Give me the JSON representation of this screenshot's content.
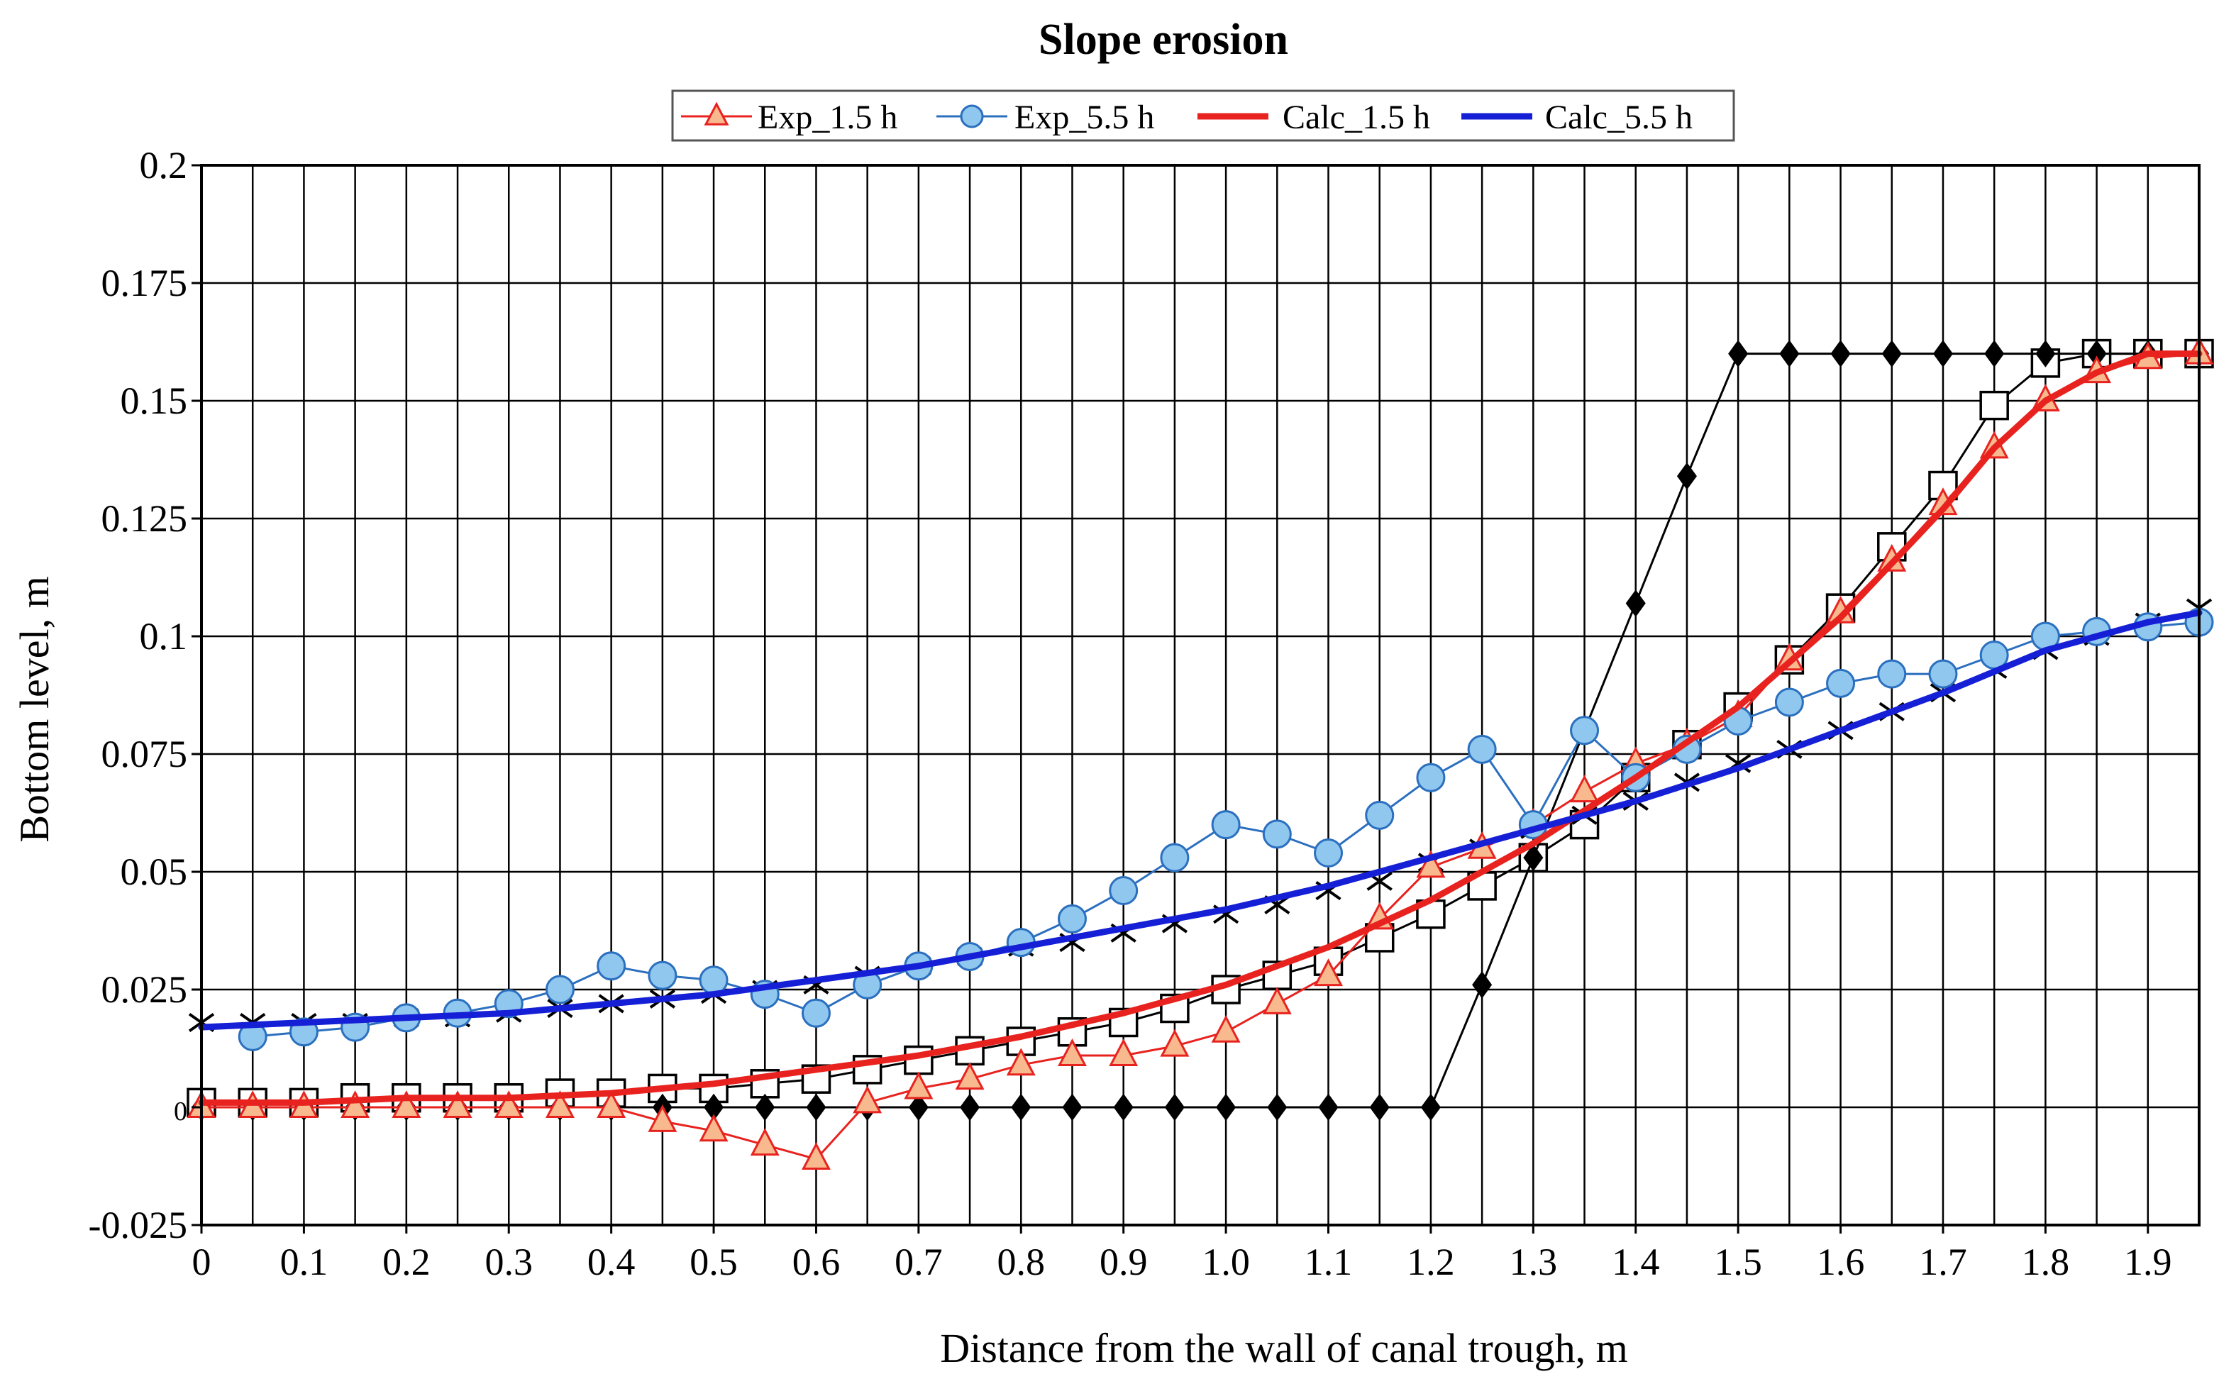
{
  "chart_data": {
    "type": "line",
    "title": "Slope erosion",
    "xlabel": "Distance from the wall of canal trough, m",
    "ylabel": "Bottom level, m",
    "xlim": [
      0,
      1.95
    ],
    "ylim": [
      -0.025,
      0.2
    ],
    "grid": true,
    "legend_position": "top-center",
    "x_ticks": [
      {
        "value": 0,
        "label": "0"
      },
      {
        "value": 0.1,
        "label": "0.1"
      },
      {
        "value": 0.2,
        "label": "0.2"
      },
      {
        "value": 0.3,
        "label": "0.3"
      },
      {
        "value": 0.4,
        "label": "0.4"
      },
      {
        "value": 0.5,
        "label": "0.5"
      },
      {
        "value": 0.6,
        "label": "0.6"
      },
      {
        "value": 0.7,
        "label": "0.7"
      },
      {
        "value": 0.8,
        "label": "0.8"
      },
      {
        "value": 0.9,
        "label": "0.9"
      },
      {
        "value": 1.0,
        "label": "1.0"
      },
      {
        "value": 1.1,
        "label": "1.1"
      },
      {
        "value": 1.2,
        "label": "1.2"
      },
      {
        "value": 1.3,
        "label": "1.3"
      },
      {
        "value": 1.4,
        "label": "1.4"
      },
      {
        "value": 1.5,
        "label": "1.5"
      },
      {
        "value": 1.6,
        "label": "1.6"
      },
      {
        "value": 1.7,
        "label": "1.7"
      },
      {
        "value": 1.8,
        "label": "1.8"
      },
      {
        "value": 1.9,
        "label": "1.9"
      }
    ],
    "y_ticks": [
      {
        "value": 0.2,
        "label": "0.2"
      },
      {
        "value": 0.175,
        "label": "0.175"
      },
      {
        "value": 0.15,
        "label": "0.15"
      },
      {
        "value": 0.125,
        "label": "0.125"
      },
      {
        "value": 0.1,
        "label": "0.1"
      },
      {
        "value": 0.075,
        "label": "0.075"
      },
      {
        "value": 0.05,
        "label": "0.05"
      },
      {
        "value": 0.025,
        "label": "0.025"
      },
      {
        "value": 0,
        "label": "0"
      },
      {
        "value": -0.025,
        "label": "-0.025"
      }
    ],
    "legend": [
      {
        "name": "Exp_1.5 h",
        "series_index": 2
      },
      {
        "name": "Exp_5.5 h",
        "series_index": 3
      },
      {
        "name": "Calc_1.5 h",
        "series_index": 4
      },
      {
        "name": "Calc_5.5 h",
        "series_index": 5
      }
    ],
    "series": [
      {
        "marker": "diamond",
        "color": "#000000",
        "fill": "#000000",
        "line_width": 3,
        "points": [
          [
            0.0,
            0
          ],
          [
            0.05,
            0
          ],
          [
            0.1,
            0
          ],
          [
            0.15,
            0
          ],
          [
            0.2,
            0
          ],
          [
            0.25,
            0
          ],
          [
            0.3,
            0
          ],
          [
            0.35,
            0
          ],
          [
            0.4,
            0
          ],
          [
            0.45,
            0
          ],
          [
            0.5,
            0
          ],
          [
            0.55,
            0
          ],
          [
            0.6,
            0
          ],
          [
            0.65,
            0
          ],
          [
            0.7,
            0
          ],
          [
            0.75,
            0
          ],
          [
            0.8,
            0
          ],
          [
            0.85,
            0
          ],
          [
            0.9,
            0
          ],
          [
            0.95,
            0
          ],
          [
            1.0,
            0
          ],
          [
            1.05,
            0
          ],
          [
            1.1,
            0
          ],
          [
            1.15,
            0
          ],
          [
            1.2,
            0
          ],
          [
            1.25,
            0.026
          ],
          [
            1.3,
            0.053
          ],
          [
            1.35,
            0.08
          ],
          [
            1.4,
            0.107
          ],
          [
            1.45,
            0.134
          ],
          [
            1.5,
            0.16
          ],
          [
            1.55,
            0.16
          ],
          [
            1.6,
            0.16
          ],
          [
            1.65,
            0.16
          ],
          [
            1.7,
            0.16
          ],
          [
            1.75,
            0.16
          ],
          [
            1.8,
            0.16
          ],
          [
            1.85,
            0.16
          ],
          [
            1.9,
            0.16
          ],
          [
            1.95,
            0.16
          ]
        ]
      },
      {
        "marker": "square",
        "color": "#000000",
        "fill": "#ffffff",
        "line_width": 3,
        "points": [
          [
            0.0,
            0.001
          ],
          [
            0.05,
            0.001
          ],
          [
            0.1,
            0.001
          ],
          [
            0.15,
            0.002
          ],
          [
            0.2,
            0.002
          ],
          [
            0.25,
            0.002
          ],
          [
            0.3,
            0.002
          ],
          [
            0.35,
            0.003
          ],
          [
            0.4,
            0.003
          ],
          [
            0.45,
            0.004
          ],
          [
            0.5,
            0.004
          ],
          [
            0.55,
            0.005
          ],
          [
            0.6,
            0.006
          ],
          [
            0.65,
            0.008
          ],
          [
            0.7,
            0.01
          ],
          [
            0.75,
            0.012
          ],
          [
            0.8,
            0.014
          ],
          [
            0.85,
            0.016
          ],
          [
            0.9,
            0.018
          ],
          [
            0.95,
            0.021
          ],
          [
            1.0,
            0.025
          ],
          [
            1.05,
            0.028
          ],
          [
            1.1,
            0.031
          ],
          [
            1.15,
            0.036
          ],
          [
            1.2,
            0.041
          ],
          [
            1.25,
            0.047
          ],
          [
            1.3,
            0.053
          ],
          [
            1.35,
            0.06
          ],
          [
            1.4,
            0.07
          ],
          [
            1.45,
            0.077
          ],
          [
            1.5,
            0.085
          ],
          [
            1.55,
            0.095
          ],
          [
            1.6,
            0.106
          ],
          [
            1.65,
            0.119
          ],
          [
            1.7,
            0.132
          ],
          [
            1.75,
            0.149
          ],
          [
            1.8,
            0.158
          ],
          [
            1.85,
            0.16
          ],
          [
            1.9,
            0.16
          ],
          [
            1.95,
            0.16
          ]
        ]
      },
      {
        "name": "Exp_1.5 h",
        "marker": "triangle",
        "color": "#e8231f",
        "fill": "#f9b98e",
        "line_width": 3,
        "points": [
          [
            0.0,
            0
          ],
          [
            0.05,
            0
          ],
          [
            0.1,
            0
          ],
          [
            0.15,
            0
          ],
          [
            0.2,
            0
          ],
          [
            0.25,
            0
          ],
          [
            0.3,
            0
          ],
          [
            0.35,
            0
          ],
          [
            0.4,
            0
          ],
          [
            0.45,
            -0.003
          ],
          [
            0.5,
            -0.005
          ],
          [
            0.55,
            -0.008
          ],
          [
            0.6,
            -0.011
          ],
          [
            0.65,
            0.001
          ],
          [
            0.7,
            0.004
          ],
          [
            0.75,
            0.006
          ],
          [
            0.8,
            0.009
          ],
          [
            0.85,
            0.011
          ],
          [
            0.9,
            0.011
          ],
          [
            0.95,
            0.013
          ],
          [
            1.0,
            0.016
          ],
          [
            1.05,
            0.022
          ],
          [
            1.1,
            0.028
          ],
          [
            1.15,
            0.04
          ],
          [
            1.2,
            0.051
          ],
          [
            1.25,
            0.055
          ],
          [
            1.3,
            0.06
          ],
          [
            1.35,
            0.067
          ],
          [
            1.4,
            0.073
          ],
          [
            1.45,
            0.077
          ],
          [
            1.5,
            0.083
          ],
          [
            1.55,
            0.095
          ],
          [
            1.6,
            0.105
          ],
          [
            1.65,
            0.116
          ],
          [
            1.7,
            0.128
          ],
          [
            1.75,
            0.14
          ],
          [
            1.8,
            0.15
          ],
          [
            1.85,
            0.156
          ],
          [
            1.9,
            0.159
          ],
          [
            1.95,
            0.16
          ]
        ]
      },
      {
        "name": "Exp_5.5 h",
        "marker": "circle",
        "color": "#2b6fbf",
        "fill": "#8fc7ee",
        "line_width": 3,
        "points": [
          [
            0.05,
            0.015
          ],
          [
            0.1,
            0.016
          ],
          [
            0.15,
            0.017
          ],
          [
            0.2,
            0.019
          ],
          [
            0.25,
            0.02
          ],
          [
            0.3,
            0.022
          ],
          [
            0.35,
            0.025
          ],
          [
            0.4,
            0.03
          ],
          [
            0.45,
            0.028
          ],
          [
            0.5,
            0.027
          ],
          [
            0.55,
            0.024
          ],
          [
            0.6,
            0.02
          ],
          [
            0.65,
            0.026
          ],
          [
            0.7,
            0.03
          ],
          [
            0.75,
            0.032
          ],
          [
            0.8,
            0.035
          ],
          [
            0.85,
            0.04
          ],
          [
            0.9,
            0.046
          ],
          [
            0.95,
            0.053
          ],
          [
            1.0,
            0.06
          ],
          [
            1.05,
            0.058
          ],
          [
            1.1,
            0.054
          ],
          [
            1.15,
            0.062
          ],
          [
            1.2,
            0.07
          ],
          [
            1.25,
            0.076
          ],
          [
            1.3,
            0.06
          ],
          [
            1.35,
            0.08
          ],
          [
            1.4,
            0.07
          ],
          [
            1.45,
            0.076
          ],
          [
            1.5,
            0.082
          ],
          [
            1.55,
            0.086
          ],
          [
            1.6,
            0.09
          ],
          [
            1.65,
            0.092
          ],
          [
            1.7,
            0.092
          ],
          [
            1.75,
            0.096
          ],
          [
            1.8,
            0.1
          ],
          [
            1.85,
            0.101
          ],
          [
            1.9,
            0.102
          ],
          [
            1.95,
            0.103
          ]
        ]
      },
      {
        "name": "Calc_1.5 h",
        "marker": "none",
        "color": "#e8231f",
        "line_width": 9,
        "points": [
          [
            0.0,
            0.001
          ],
          [
            0.1,
            0.001
          ],
          [
            0.2,
            0.002
          ],
          [
            0.3,
            0.002
          ],
          [
            0.4,
            0.003
          ],
          [
            0.5,
            0.005
          ],
          [
            0.6,
            0.008
          ],
          [
            0.7,
            0.011
          ],
          [
            0.8,
            0.015
          ],
          [
            0.9,
            0.02
          ],
          [
            1.0,
            0.026
          ],
          [
            1.1,
            0.034
          ],
          [
            1.2,
            0.044
          ],
          [
            1.3,
            0.056
          ],
          [
            1.4,
            0.07
          ],
          [
            1.5,
            0.085
          ],
          [
            1.6,
            0.104
          ],
          [
            1.7,
            0.127
          ],
          [
            1.75,
            0.14
          ],
          [
            1.8,
            0.15
          ],
          [
            1.85,
            0.156
          ],
          [
            1.9,
            0.16
          ],
          [
            1.95,
            0.16
          ]
        ]
      },
      {
        "name": "Calc_5.5 h",
        "marker": "none",
        "color": "#1520d6",
        "line_width": 9,
        "points": [
          [
            0.0,
            0.017
          ],
          [
            0.1,
            0.018
          ],
          [
            0.2,
            0.019
          ],
          [
            0.3,
            0.02
          ],
          [
            0.4,
            0.022
          ],
          [
            0.5,
            0.024
          ],
          [
            0.6,
            0.027
          ],
          [
            0.7,
            0.03
          ],
          [
            0.8,
            0.034
          ],
          [
            0.9,
            0.038
          ],
          [
            1.0,
            0.042
          ],
          [
            1.1,
            0.047
          ],
          [
            1.2,
            0.053
          ],
          [
            1.3,
            0.059
          ],
          [
            1.4,
            0.065
          ],
          [
            1.5,
            0.072
          ],
          [
            1.6,
            0.08
          ],
          [
            1.7,
            0.088
          ],
          [
            1.8,
            0.097
          ],
          [
            1.9,
            0.103
          ],
          [
            1.95,
            0.105
          ]
        ]
      },
      {
        "marker": "cross",
        "color": "#000000",
        "fill": "none",
        "line_width": 0,
        "points": [
          [
            0.0,
            0.018
          ],
          [
            0.05,
            0.018
          ],
          [
            0.1,
            0.018
          ],
          [
            0.15,
            0.018
          ],
          [
            0.2,
            0.019
          ],
          [
            0.25,
            0.019
          ],
          [
            0.3,
            0.02
          ],
          [
            0.35,
            0.021
          ],
          [
            0.4,
            0.022
          ],
          [
            0.45,
            0.023
          ],
          [
            0.5,
            0.024
          ],
          [
            0.55,
            0.025
          ],
          [
            0.6,
            0.026
          ],
          [
            0.65,
            0.028
          ],
          [
            0.7,
            0.03
          ],
          [
            0.75,
            0.032
          ],
          [
            0.8,
            0.034
          ],
          [
            0.85,
            0.035
          ],
          [
            0.9,
            0.037
          ],
          [
            0.95,
            0.039
          ],
          [
            1.0,
            0.041
          ],
          [
            1.05,
            0.043
          ],
          [
            1.1,
            0.046
          ],
          [
            1.15,
            0.048
          ],
          [
            1.2,
            0.052
          ],
          [
            1.25,
            0.055
          ],
          [
            1.3,
            0.059
          ],
          [
            1.35,
            0.062
          ],
          [
            1.4,
            0.065
          ],
          [
            1.45,
            0.069
          ],
          [
            1.5,
            0.073
          ],
          [
            1.55,
            0.076
          ],
          [
            1.6,
            0.08
          ],
          [
            1.65,
            0.084
          ],
          [
            1.7,
            0.088
          ],
          [
            1.75,
            0.093
          ],
          [
            1.8,
            0.097
          ],
          [
            1.85,
            0.1
          ],
          [
            1.9,
            0.103
          ],
          [
            1.95,
            0.106
          ]
        ]
      }
    ]
  }
}
